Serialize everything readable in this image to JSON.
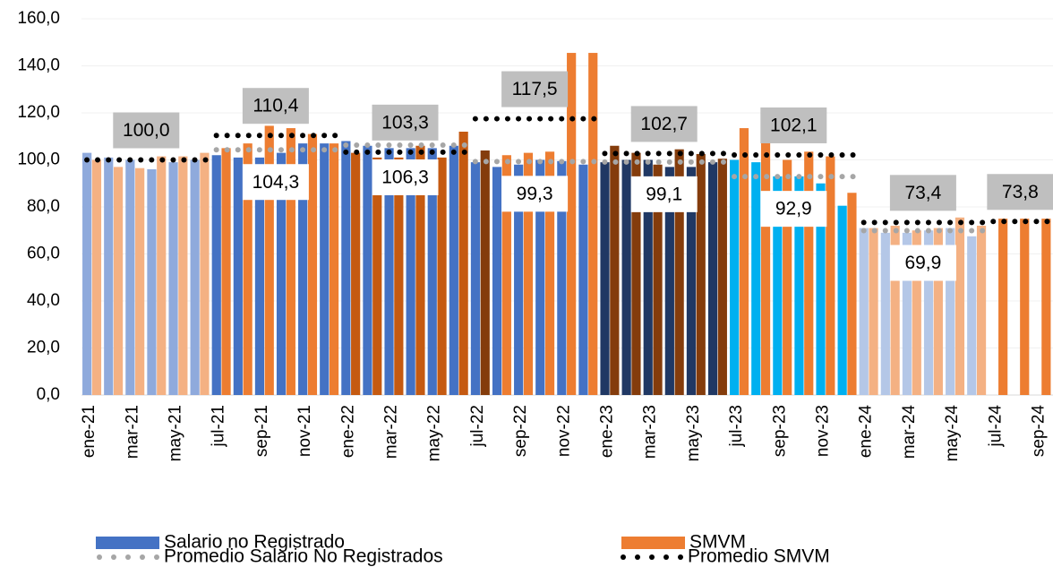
{
  "chart_data": {
    "type": "bar",
    "categories": [
      "ene-21",
      null,
      "mar-21",
      null,
      "may-21",
      null,
      "jul-21",
      null,
      "sep-21",
      null,
      "nov-21",
      null,
      "ene-22",
      null,
      "mar-22",
      null,
      "may-22",
      null,
      "jul-22",
      null,
      "sep-22",
      null,
      "nov-22",
      null,
      "ene-23",
      null,
      "mar-23",
      null,
      "may-23",
      null,
      "jul-23",
      null,
      "sep-23",
      null,
      "nov-23",
      null,
      "ene-24",
      null,
      "mar-24",
      null,
      "may-24",
      null,
      "jul-24",
      null,
      "sep-24"
    ],
    "ylim": [
      0,
      160
    ],
    "yticks": [
      {
        "value": 0,
        "label": "0,0"
      },
      {
        "value": 20,
        "label": "20,0"
      },
      {
        "value": 40,
        "label": "40,0"
      },
      {
        "value": 60,
        "label": "60,0"
      },
      {
        "value": 80,
        "label": "80,0"
      },
      {
        "value": 100,
        "label": "100,0"
      },
      {
        "value": 120,
        "label": "120,0"
      },
      {
        "value": 140,
        "label": "140,0"
      },
      {
        "value": 160,
        "label": "160,0"
      }
    ],
    "grid": true,
    "legend": "bottom",
    "series": [
      {
        "name": "Salario no Registrado",
        "type": "bar",
        "color": "#4472c4",
        "colors": [
          "#8faadc",
          "#8faadc",
          "#8faadc",
          "#8faadc",
          "#8faadc",
          "#8faadc",
          "#4472c4",
          "#4472c4",
          "#4472c4",
          "#4472c4",
          "#4472c4",
          "#4472c4",
          "#4472c4",
          "#4472c4",
          "#4472c4",
          "#4472c4",
          "#4472c4",
          "#4472c4",
          "#4472c4",
          "#4472c4",
          "#4472c4",
          "#4472c4",
          "#4472c4",
          "#4472c4",
          "#203864",
          "#203864",
          "#203864",
          "#203864",
          "#203864",
          "#203864",
          "#00b0f0",
          "#00b0f0",
          "#00b0f0",
          "#00b0f0",
          "#00b0f0",
          "#00b0f0",
          "#b4c7e7",
          "#b4c7e7",
          "#b4c7e7",
          "#b4c7e7",
          "#b4c7e7",
          "#b4c7e7",
          "#4472c4",
          "#4472c4",
          "#4472c4"
        ],
        "values": [
          103,
          101,
          100,
          96,
          99,
          100,
          102,
          101,
          101,
          103,
          107,
          107,
          108,
          106,
          105,
          105,
          105,
          106,
          99,
          97,
          98,
          100,
          99.5,
          98,
          99,
          100,
          100,
          97,
          97,
          99,
          100,
          99,
          93,
          93,
          90,
          80.5,
          71,
          69,
          69,
          70,
          71,
          67.5,
          null,
          null,
          null
        ]
      },
      {
        "name": "SMVM",
        "type": "bar",
        "color": "#ed7d31",
        "colors": [
          "#f4b183",
          "#f4b183",
          "#f4b183",
          "#f4b183",
          "#f4b183",
          "#f4b183",
          "#ed7d31",
          "#ed7d31",
          "#ed7d31",
          "#ed7d31",
          "#ed7d31",
          "#ed7d31",
          "#c55a11",
          "#c55a11",
          "#c55a11",
          "#c55a11",
          "#c55a11",
          "#c55a11",
          "#843c0c",
          "#ed7d31",
          "#ed7d31",
          "#ed7d31",
          "#ed7d31",
          "#ed7d31",
          "#843c0c",
          "#843c0c",
          "#843c0c",
          "#843c0c",
          "#843c0c",
          "#843c0c",
          "#ed7d31",
          "#ed7d31",
          "#ed7d31",
          "#ed7d31",
          "#ed7d31",
          "#ed7d31",
          "#f4b183",
          "#f4b183",
          "#f4b183",
          "#f4b183",
          "#f4b183",
          "#f4b183",
          "#ed7d31",
          "#ed7d31",
          "#ed7d31"
        ],
        "values": [
          100,
          97,
          96.5,
          101.5,
          101.5,
          103,
          105,
          107,
          114.5,
          113.5,
          111,
          107,
          103,
          101,
          101,
          106,
          101,
          112,
          104,
          102,
          103,
          103.5,
          145.5,
          145.5,
          106,
          103,
          98,
          104.5,
          102.5,
          100.5,
          113.5,
          108,
          100,
          103.5,
          101.5,
          86,
          71,
          72,
          70,
          71,
          75.5,
          72,
          75,
          75,
          75
        ]
      },
      {
        "name": "Promedio Salario No Registrados",
        "type": "dots",
        "color": "#a6a6a6",
        "label_box": "#ffffff",
        "values": [
          null,
          null,
          null,
          null,
          null,
          null,
          104.3,
          104.3,
          104.3,
          104.3,
          104.3,
          104.3,
          106.3,
          106.3,
          106.3,
          106.3,
          106.3,
          106.3,
          99.3,
          99.3,
          99.3,
          99.3,
          99.3,
          99.3,
          99.1,
          99.1,
          99.1,
          99.1,
          99.1,
          99.1,
          92.9,
          92.9,
          92.9,
          92.9,
          92.9,
          92.9,
          69.9,
          69.9,
          69.9,
          69.9,
          69.9,
          69.9,
          null,
          null,
          null
        ],
        "value_labels": [
          null,
          null,
          null,
          null,
          null,
          null,
          null,
          null,
          "104,3",
          null,
          null,
          null,
          null,
          null,
          "106,3",
          null,
          null,
          null,
          null,
          null,
          "99,3",
          null,
          null,
          null,
          null,
          null,
          "99,1",
          null,
          null,
          null,
          null,
          null,
          "92,9",
          null,
          null,
          null,
          null,
          null,
          "69,9",
          null,
          null,
          null,
          null,
          null,
          null
        ]
      },
      {
        "name": "Promedio SMVM",
        "type": "dots",
        "color": "#000000",
        "label_box": "#bfbfbf",
        "values": [
          100,
          100,
          100,
          100,
          100,
          100,
          110.4,
          110.4,
          110.4,
          110.4,
          110.4,
          110.4,
          103.3,
          103.3,
          103.3,
          103.3,
          103.3,
          103.3,
          117.5,
          117.5,
          117.5,
          117.5,
          117.5,
          117.5,
          102.7,
          102.7,
          102.7,
          102.7,
          102.7,
          102.7,
          102.1,
          102.1,
          102.1,
          102.1,
          102.1,
          102.1,
          73.4,
          73.4,
          73.4,
          73.4,
          73.4,
          73.4,
          73.8,
          73.8,
          73.8
        ],
        "value_labels": [
          null,
          null,
          "100,0",
          null,
          null,
          null,
          null,
          null,
          "110,4",
          null,
          null,
          null,
          null,
          null,
          "103,3",
          null,
          null,
          null,
          null,
          null,
          "117,5",
          null,
          null,
          null,
          null,
          null,
          "102,7",
          null,
          null,
          null,
          null,
          null,
          "102,1",
          null,
          null,
          null,
          null,
          null,
          "73,4",
          null,
          null,
          null,
          null,
          "73,8",
          null
        ]
      }
    ]
  }
}
